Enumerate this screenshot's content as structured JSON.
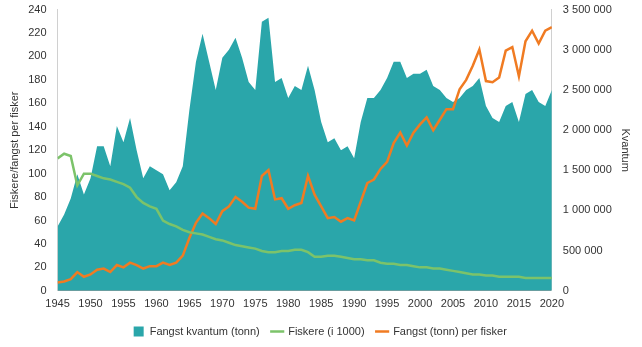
{
  "chart_data": {
    "type": "line",
    "ylabel": "Fiskere/fangst per fisker",
    "y2label": "Kvantum",
    "x": [
      1945,
      1946,
      1947,
      1948,
      1949,
      1950,
      1951,
      1952,
      1953,
      1954,
      1955,
      1956,
      1957,
      1958,
      1959,
      1960,
      1961,
      1962,
      1963,
      1964,
      1965,
      1966,
      1967,
      1968,
      1969,
      1970,
      1971,
      1972,
      1973,
      1974,
      1975,
      1976,
      1977,
      1978,
      1979,
      1980,
      1981,
      1982,
      1983,
      1984,
      1985,
      1986,
      1987,
      1988,
      1989,
      1990,
      1991,
      1992,
      1993,
      1994,
      1995,
      1996,
      1997,
      1998,
      1999,
      2000,
      2001,
      2002,
      2003,
      2004,
      2005,
      2006,
      2007,
      2008,
      2009,
      2010,
      2011,
      2012,
      2013,
      2014,
      2015,
      2016,
      2017,
      2018,
      2019,
      2020
    ],
    "series": [
      {
        "name": "Fangst kvantum (tonn)",
        "type": "area",
        "axis": "y2",
        "color": "#2aa6aa",
        "values": [
          800000,
          950000,
          1150000,
          1450000,
          1200000,
          1400000,
          1800000,
          1800000,
          1550000,
          2050000,
          1850000,
          2150000,
          1750000,
          1400000,
          1550000,
          1500000,
          1450000,
          1250000,
          1350000,
          1550000,
          2250000,
          2850000,
          3200000,
          2850000,
          2500000,
          2900000,
          3000000,
          3150000,
          2900000,
          2600000,
          2500000,
          3350000,
          3400000,
          2600000,
          2650000,
          2400000,
          2550000,
          2500000,
          2800000,
          2500000,
          2100000,
          1850000,
          1900000,
          1750000,
          1800000,
          1650000,
          2100000,
          2400000,
          2400000,
          2500000,
          2650000,
          2850000,
          2850000,
          2650000,
          2700000,
          2700000,
          2750000,
          2550000,
          2500000,
          2400000,
          2350000,
          2400000,
          2500000,
          2550000,
          2650000,
          2300000,
          2150000,
          2100000,
          2300000,
          2350000,
          2100000,
          2450000,
          2500000,
          2350000,
          2300000,
          2500000
        ]
      },
      {
        "name": "Fiskere (i 1000)",
        "type": "line",
        "color": "#7cc36a",
        "values": [
          113,
          117,
          115,
          90,
          100,
          100,
          98,
          96,
          95,
          93,
          91,
          88,
          80,
          75,
          72,
          70,
          60,
          57,
          55,
          52,
          50,
          49,
          48,
          46,
          44,
          43,
          41,
          39,
          38,
          37,
          36,
          34,
          33,
          33,
          34,
          34,
          35,
          35,
          33,
          29,
          29,
          30,
          30,
          29,
          28,
          27,
          27,
          26,
          26,
          24,
          23,
          23,
          22,
          22,
          21,
          20,
          20,
          19,
          19,
          18,
          17,
          16,
          15,
          14,
          14,
          13,
          13,
          12,
          12,
          12,
          12,
          11,
          11,
          11,
          11,
          11
        ]
      },
      {
        "name": "Fangst (tonn) per fisker",
        "type": "line",
        "color": "#f07b22",
        "values": [
          7,
          8,
          10,
          16,
          12,
          14,
          18,
          19,
          16,
          22,
          20,
          24,
          22,
          19,
          21,
          21,
          24,
          22,
          24,
          30,
          45,
          58,
          66,
          62,
          57,
          68,
          72,
          80,
          76,
          71,
          70,
          98,
          103,
          78,
          79,
          70,
          73,
          75,
          98,
          82,
          72,
          62,
          63,
          59,
          62,
          60,
          76,
          92,
          95,
          104,
          110,
          126,
          135,
          124,
          135,
          142,
          148,
          137,
          146,
          155,
          155,
          172,
          180,
          192,
          206,
          179,
          178,
          182,
          205,
          208,
          183,
          213,
          222,
          211,
          222,
          225
        ]
      }
    ],
    "xlim": [
      1945,
      2020
    ],
    "xticks": [
      1945,
      1950,
      1955,
      1960,
      1965,
      1970,
      1975,
      1980,
      1985,
      1990,
      1995,
      2000,
      2005,
      2010,
      2015,
      2020
    ],
    "ylim": [
      0,
      240
    ],
    "yticks": [
      0,
      20,
      40,
      60,
      80,
      100,
      120,
      140,
      160,
      180,
      200,
      220,
      240
    ],
    "y2lim": [
      0,
      3500000
    ],
    "y2ticks": [
      0,
      {
        "value": 500000,
        "label": "500 000"
      },
      {
        "value": 1000000,
        "label": "1 000 000"
      },
      {
        "value": 1500000,
        "label": "1 500 000"
      },
      {
        "value": 2000000,
        "label": "2 000 000"
      },
      {
        "value": 2500000,
        "label": "2 500 000"
      },
      {
        "value": 3000000,
        "label": "3 000 000"
      },
      {
        "value": 3500000,
        "label": "3 500 000"
      }
    ],
    "grid": false,
    "legend": "bottom"
  }
}
